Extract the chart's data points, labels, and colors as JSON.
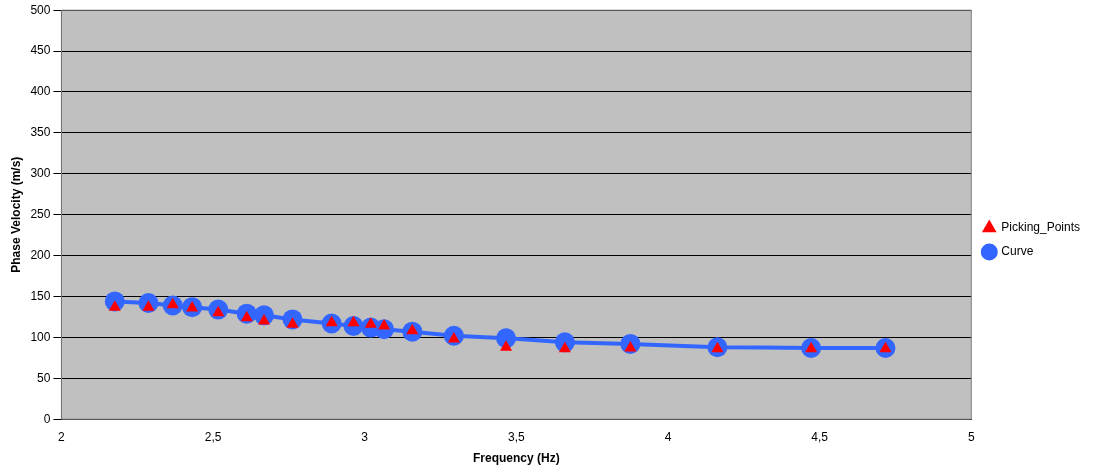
{
  "chart_data": {
    "type": "scatter",
    "xlabel": "Frequency (Hz)",
    "ylabel": "Phase Velocity (m/s)",
    "x": [
      2.176,
      2.287,
      2.367,
      2.431,
      2.517,
      2.611,
      2.668,
      2.762,
      2.891,
      2.963,
      3.02,
      3.064,
      3.157,
      3.294,
      3.466,
      3.66,
      3.876,
      4.163,
      4.472,
      4.717
    ],
    "series": [
      {
        "name": "Picking_Points",
        "marker": "triangle",
        "color": "#ff0000",
        "values": [
          137,
          137,
          140,
          136,
          130,
          124,
          120,
          116,
          118,
          118,
          116,
          114,
          108,
          98,
          88,
          86,
          87,
          86,
          86,
          86
        ]
      },
      {
        "name": "Curve",
        "type": "line",
        "marker": "circle",
        "color": "#3366ff",
        "values": [
          144,
          142,
          139,
          137,
          134,
          129,
          127,
          122,
          117,
          114,
          112,
          110,
          107,
          102,
          99,
          94,
          92,
          88,
          87,
          87
        ]
      }
    ],
    "xlim": [
      2,
      5
    ],
    "xticks": [
      2,
      {
        "value": 2.5,
        "label": "2,5"
      },
      3,
      {
        "value": 3.5,
        "label": "3,5"
      },
      4,
      {
        "value": 4.5,
        "label": "4,5"
      },
      5
    ],
    "ylim": [
      0,
      500
    ],
    "yticks": [
      0,
      50,
      100,
      150,
      200,
      250,
      300,
      350,
      400,
      450,
      500
    ],
    "grid": "y",
    "legend": "right"
  }
}
